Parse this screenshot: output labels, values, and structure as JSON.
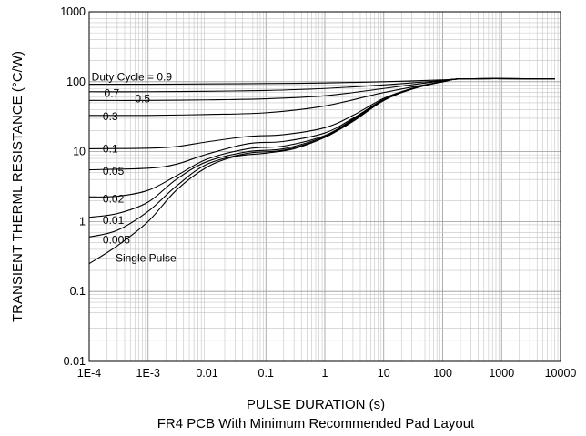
{
  "chart_data": {
    "type": "line",
    "title": "",
    "xlabel": "PULSE DURATION (s)",
    "subtitle": "FR4 PCB With Minimum Recommended Pad Layout",
    "ylabel": "TRANSIENT THERML RESISTANCE (°C/W)",
    "x_scale": "log",
    "y_scale": "log",
    "xlim": [
      0.0001,
      10000
    ],
    "ylim": [
      0.01,
      1000
    ],
    "grid": true,
    "x_ticks": [
      {
        "value": 0.0001,
        "label": "1E-4"
      },
      {
        "value": 0.001,
        "label": "1E-3"
      },
      {
        "value": 0.01,
        "label": "0.01"
      },
      {
        "value": 0.1,
        "label": "0.1"
      },
      {
        "value": 1,
        "label": "1"
      },
      {
        "value": 10,
        "label": "10"
      },
      {
        "value": 100,
        "label": "100"
      },
      {
        "value": 1000,
        "label": "1000"
      },
      {
        "value": 10000,
        "label": "10000"
      }
    ],
    "y_ticks": [
      {
        "value": 0.01,
        "label": "0.01"
      },
      {
        "value": 0.1,
        "label": "0.1"
      },
      {
        "value": 1,
        "label": "1"
      },
      {
        "value": 10,
        "label": "10"
      },
      {
        "value": 100,
        "label": "100"
      },
      {
        "value": 1000,
        "label": "1000"
      }
    ],
    "series": [
      {
        "name": "Duty Cycle = 0.9",
        "label_anchor": [
          0.00011,
          118
        ],
        "x": [
          0.0001,
          0.001,
          0.01,
          0.1,
          1,
          10,
          100,
          250,
          8000
        ],
        "values": [
          92,
          92,
          93,
          94,
          96,
          100,
          106,
          110,
          110
        ]
      },
      {
        "name": "0.7",
        "label_anchor": [
          0.00018,
          68
        ],
        "x": [
          0.0001,
          0.001,
          0.01,
          0.1,
          1,
          10,
          100,
          250,
          8000
        ],
        "values": [
          72,
          72,
          73,
          75,
          80,
          90,
          104,
          110,
          110
        ]
      },
      {
        "name": "0.5",
        "label_anchor": [
          0.0006,
          57
        ],
        "x": [
          0.0001,
          0.001,
          0.01,
          0.1,
          1,
          10,
          100,
          250,
          8000
        ],
        "values": [
          54,
          54,
          55,
          57,
          63,
          80,
          103,
          110,
          110
        ]
      },
      {
        "name": "0.3",
        "label_anchor": [
          0.00017,
          32
        ],
        "x": [
          0.0001,
          0.001,
          0.01,
          0.1,
          1,
          10,
          100,
          250,
          8000
        ],
        "values": [
          33,
          33,
          34,
          36,
          45,
          70,
          100,
          110,
          110
        ]
      },
      {
        "name": "0.1",
        "label_anchor": [
          0.00017,
          11
        ],
        "x": [
          0.0001,
          0.001,
          0.003,
          0.01,
          0.05,
          0.2,
          1,
          3,
          10,
          30,
          100,
          250,
          8000
        ],
        "values": [
          11,
          11.2,
          11.8,
          13.8,
          16.5,
          17.5,
          22,
          33,
          58,
          80,
          100,
          110,
          110
        ]
      },
      {
        "name": "0.05",
        "label_anchor": [
          0.00017,
          5.3
        ],
        "x": [
          0.0001,
          0.001,
          0.003,
          0.01,
          0.05,
          0.2,
          1,
          3,
          10,
          30,
          100,
          250,
          8000
        ],
        "values": [
          5.5,
          5.8,
          6.6,
          9.2,
          13,
          14,
          18.5,
          30,
          56,
          80,
          100,
          110,
          110
        ]
      },
      {
        "name": "0.02",
        "label_anchor": [
          0.00017,
          2.1
        ],
        "x": [
          0.0001,
          0.0003,
          0.001,
          0.003,
          0.01,
          0.05,
          0.2,
          1,
          3,
          10,
          30,
          100,
          250,
          8000
        ],
        "values": [
          2.25,
          2.3,
          2.8,
          4.5,
          7.8,
          11,
          12,
          17,
          29,
          55,
          79,
          100,
          110,
          110
        ]
      },
      {
        "name": "0.01",
        "label_anchor": [
          0.00017,
          1.05
        ],
        "x": [
          0.0001,
          0.0003,
          0.001,
          0.003,
          0.01,
          0.05,
          0.2,
          1,
          3,
          10,
          30,
          100,
          250,
          8000
        ],
        "values": [
          1.15,
          1.3,
          1.9,
          4,
          7.2,
          10,
          11,
          16.5,
          28.5,
          55,
          79,
          100,
          110,
          110
        ]
      },
      {
        "name": "0.005",
        "label_anchor": [
          0.00017,
          0.55
        ],
        "x": [
          0.0001,
          0.0003,
          0.001,
          0.003,
          0.01,
          0.05,
          0.2,
          1,
          3,
          10,
          30,
          100,
          250,
          8000
        ],
        "values": [
          0.6,
          0.75,
          1.4,
          3.2,
          6.6,
          9.5,
          10.5,
          16,
          28,
          54,
          79,
          100,
          110,
          110
        ]
      },
      {
        "name": "Single Pulse",
        "label_anchor": [
          0.00028,
          0.3
        ],
        "x": [
          0.0001,
          0.0003,
          0.001,
          0.003,
          0.01,
          0.03,
          0.1,
          0.3,
          1,
          3,
          10,
          30,
          100,
          250,
          8000
        ],
        "values": [
          0.25,
          0.45,
          1.0,
          2.8,
          6,
          8.5,
          9.5,
          11,
          16,
          27,
          54,
          78,
          100,
          110,
          110
        ]
      }
    ]
  }
}
